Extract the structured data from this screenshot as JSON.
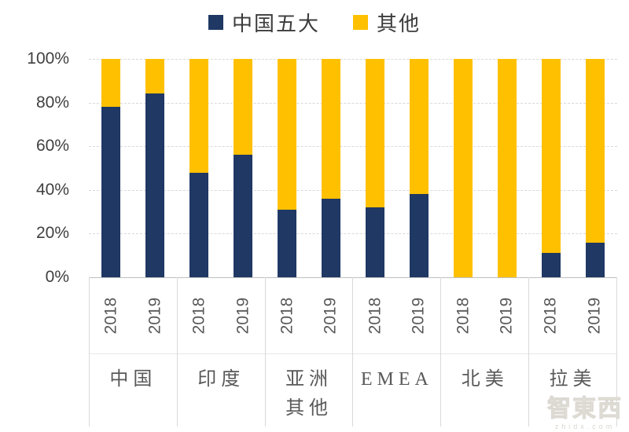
{
  "chart_data": {
    "type": "bar",
    "subtype": "stacked-100-percent",
    "title": "",
    "legend_position": "top-center",
    "grid": "dashed-horizontal",
    "colors": {
      "china_top5": "#1F3864",
      "other": "#FFC000"
    },
    "legend": [
      {
        "label": "中国五大",
        "color": "#1F3864"
      },
      {
        "label": "其他",
        "color": "#FFC000"
      }
    ],
    "y_axis": {
      "min": 0,
      "max": 100,
      "unit": "%",
      "ticks": [
        "100%",
        "80%",
        "60%",
        "40%",
        "20%",
        "0%"
      ]
    },
    "series_names": [
      "中国五大",
      "其他"
    ],
    "groups": [
      {
        "label": "中国",
        "bars": [
          {
            "year": "2018",
            "china_top5": 78,
            "other": 22
          },
          {
            "year": "2019",
            "china_top5": 84,
            "other": 16
          }
        ]
      },
      {
        "label": "印度",
        "bars": [
          {
            "year": "2018",
            "china_top5": 48,
            "other": 52
          },
          {
            "year": "2019",
            "china_top5": 56,
            "other": 44
          }
        ]
      },
      {
        "label": "亚洲\n其他",
        "bars": [
          {
            "year": "2018",
            "china_top5": 31,
            "other": 69
          },
          {
            "year": "2019",
            "china_top5": 36,
            "other": 64
          }
        ]
      },
      {
        "label": "EMEA",
        "bars": [
          {
            "year": "2018",
            "china_top5": 32,
            "other": 68
          },
          {
            "year": "2019",
            "china_top5": 38,
            "other": 62
          }
        ]
      },
      {
        "label": "北美",
        "bars": [
          {
            "year": "2018",
            "china_top5": 0,
            "other": 100
          },
          {
            "year": "2019",
            "china_top5": 0,
            "other": 100
          }
        ]
      },
      {
        "label": "拉美",
        "bars": [
          {
            "year": "2018",
            "china_top5": 11,
            "other": 89
          },
          {
            "year": "2019",
            "china_top5": 16,
            "other": 84
          }
        ]
      }
    ]
  },
  "watermark": {
    "logo": "智東西",
    "domain": "zhidx.com"
  }
}
